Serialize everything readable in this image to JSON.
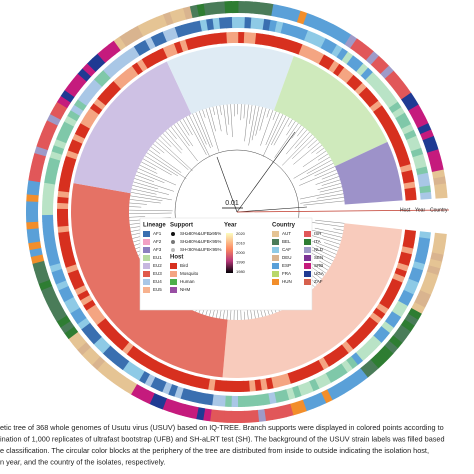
{
  "figure": {
    "scale_label": "0.01",
    "ring_labels": [
      "Host",
      "Year",
      "Country"
    ],
    "legend": {
      "lineage": {
        "title": "Lineage",
        "items": [
          {
            "label": "AF1",
            "color": "#3a6fb0"
          },
          {
            "label": "AF2",
            "color": "#f2a1c4"
          },
          {
            "label": "AF3",
            "color": "#8c7fc0"
          },
          {
            "label": "EU1",
            "color": "#b7dba0"
          },
          {
            "label": "EU2",
            "color": "#c6b6df"
          },
          {
            "label": "EU3",
            "color": "#e0594a"
          },
          {
            "label": "EU4",
            "color": "#a9c7e6"
          },
          {
            "label": "EU5",
            "color": "#f7b28e"
          }
        ]
      },
      "support": {
        "title": "Support",
        "items": [
          {
            "label": "SH≥80%&UFB≥95%",
            "color": "#111111"
          },
          {
            "label": "SH≥80%&UFB<95%",
            "color": "#777777"
          },
          {
            "label": "SH<80%&UFB<95%",
            "color": "#bbbbbb"
          }
        ]
      },
      "host": {
        "title": "Host",
        "items": [
          {
            "label": "Bird",
            "color": "#d7301f"
          },
          {
            "label": "Mosquito",
            "color": "#f4a582"
          },
          {
            "label": "Human",
            "color": "#4daf4a"
          },
          {
            "label": "NHM",
            "color": "#984ea3"
          }
        ]
      },
      "year": {
        "title": "Year",
        "ticks": [
          "2020",
          "2010",
          "2000",
          "1990",
          "1980"
        ]
      },
      "country": {
        "title": "Country",
        "items": [
          {
            "label": "AUT",
            "color": "#e5c494"
          },
          {
            "label": "BEL",
            "color": "#4a7c59"
          },
          {
            "label": "CAF",
            "color": "#8ecae6"
          },
          {
            "label": "DEU",
            "color": "#d9b48f"
          },
          {
            "label": "ESP",
            "color": "#5aa0d8"
          },
          {
            "label": "FRA",
            "color": "#b9d86a"
          },
          {
            "label": "HUN",
            "color": "#f28e2b"
          },
          {
            "label": "ISR",
            "color": "#e15759"
          },
          {
            "label": "ITA",
            "color": "#2e7d32"
          },
          {
            "label": "NLD",
            "color": "#9e9ac8"
          },
          {
            "label": "SEN",
            "color": "#7b3294"
          },
          {
            "label": "SRB",
            "color": "#c51b7d"
          },
          {
            "label": "UGA",
            "color": "#1f3a93"
          },
          {
            "label": "ZAF",
            "color": "#d6604d"
          }
        ]
      }
    },
    "caption": [
      "etic tree of 368 whole genomes of Usutu virus (USUV) based on IQ-TREE. Branch supports were displayed in colored points according to",
      "ination of 1,000 replicates of ultrafast bootstrap (UFB) and SH-aLRT test (SH). The background of the USUV strain labels was filled based",
      "e classification. The circular color blocks at the periphery of the tree are distributed from inside to outside indicating the isolation host,",
      "n year, and the country of the isolates, respectively."
    ]
  }
}
